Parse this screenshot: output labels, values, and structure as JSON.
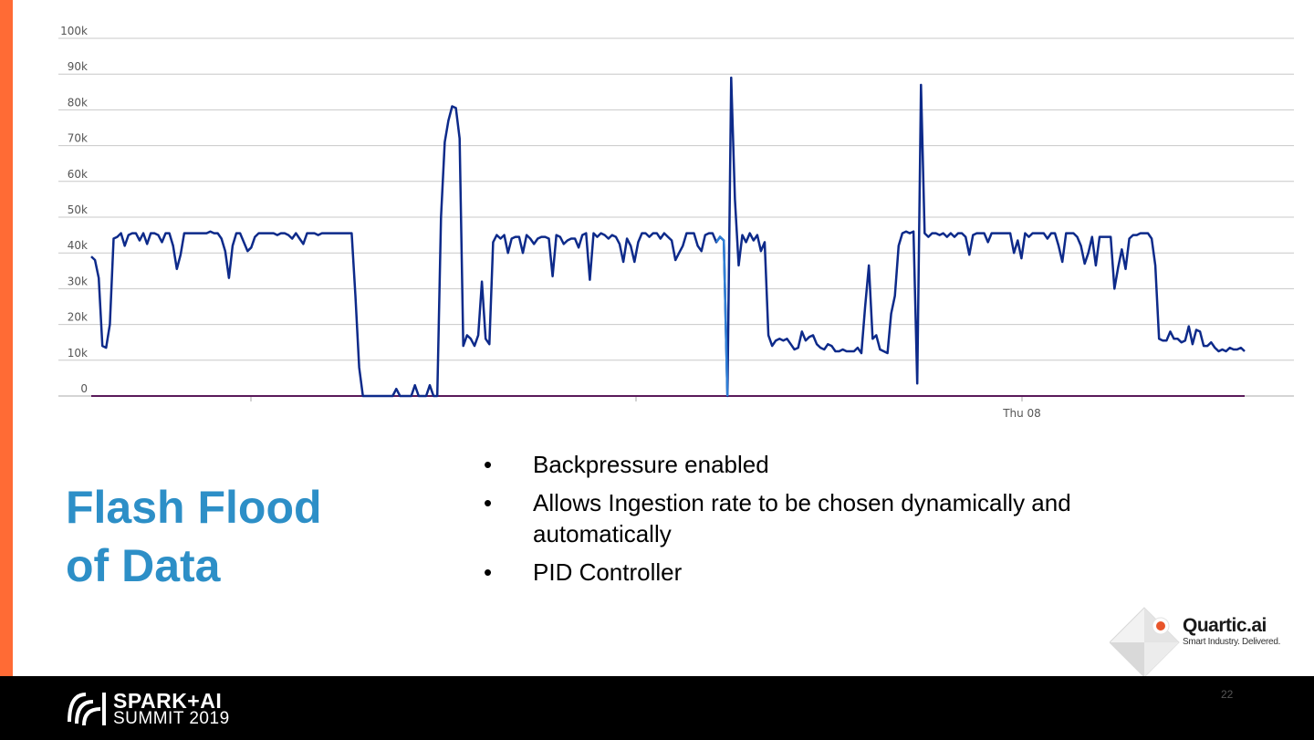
{
  "slide": {
    "title_line1": "Flash Flood",
    "title_line2": "of Data",
    "bullets": [
      "Backpressure enabled",
      "Allows Ingestion rate to be chosen dynamically and automatically",
      "PID Controller"
    ],
    "page_number": "22"
  },
  "logo": {
    "name": "Quartic.ai",
    "tagline": "Smart Industry. Delivered."
  },
  "footer": {
    "brand_line1": "SPARK+AI",
    "brand_line2": "SUMMIT 2019"
  },
  "colors": {
    "accent": "#ff6b35",
    "title": "#2d8fc7",
    "series": "#0d2a8a",
    "highlight": "#2f7fd6",
    "baseline": "#5a1a5a"
  },
  "chart_data": {
    "type": "line",
    "title": "",
    "xlabel": "",
    "ylabel": "",
    "ylim": [
      0,
      100000
    ],
    "y_ticks": [
      0,
      10000,
      20000,
      30000,
      40000,
      50000,
      60000,
      70000,
      80000,
      90000,
      100000
    ],
    "y_tick_labels": [
      "0",
      "10k",
      "20k",
      "30k",
      "40k",
      "50k",
      "60k",
      "70k",
      "80k",
      "90k",
      "100k"
    ],
    "x_tick_labels": [
      "Thu 08"
    ],
    "grid": true,
    "legend": "none",
    "series": [
      {
        "values": [
          39000,
          38000,
          33000,
          14000,
          13500,
          20000,
          44000,
          44500,
          45500,
          42000,
          45000,
          45500,
          45500,
          43500,
          45500,
          42500,
          45500,
          45500,
          45000,
          43000,
          45500,
          45500,
          42000,
          35500,
          39500,
          45500,
          45500,
          45500,
          45500,
          45500,
          45500,
          45500,
          46000,
          45500,
          45500,
          44000,
          40500,
          33000,
          42000,
          45500,
          45500,
          43000,
          40500,
          41500,
          44500,
          45500,
          45500,
          45500,
          45500,
          45500,
          45000,
          45500,
          45500,
          45000,
          44000,
          45500,
          44000,
          42500,
          45500,
          45500,
          45500,
          45000,
          45500,
          45500,
          45500,
          45500,
          45500,
          45500,
          45500,
          45500,
          45500,
          28000,
          8000,
          0,
          0,
          0,
          0,
          0,
          0,
          0,
          0,
          0,
          2000,
          0,
          0,
          0,
          0,
          3000,
          0,
          0,
          0,
          3000,
          0,
          0,
          50000,
          71000,
          77000,
          81000,
          80500,
          72000,
          14000,
          17000,
          16000,
          14000,
          17000,
          32000,
          16000,
          14500,
          43000,
          45000,
          44000,
          45000,
          40000,
          44000,
          44500,
          44500,
          40000,
          45000,
          44000,
          42500,
          44000,
          44500,
          44500,
          44000,
          33500,
          45000,
          44500,
          42500,
          43500,
          44000,
          44000,
          41500,
          45000,
          45500,
          32500,
          45500,
          44500,
          45500,
          45000,
          44000,
          45000,
          44500,
          42500,
          37500,
          44000,
          42000,
          37500,
          43000,
          45500,
          45500,
          44500,
          45500,
          45500,
          44000,
          45500,
          44500,
          43500,
          38000,
          40000,
          42000,
          45500,
          45500,
          45500,
          42000,
          40500,
          45000,
          45500,
          45500,
          43000,
          44500,
          43500,
          0,
          89000,
          55000,
          36500,
          45000,
          43000,
          45500,
          43500,
          45000,
          40500,
          43000,
          17000,
          14000,
          15500,
          16000,
          15500,
          16000,
          14500,
          13000,
          13500,
          18000,
          15500,
          16500,
          17000,
          14500,
          13500,
          13000,
          14500,
          14000,
          12500,
          12500,
          13000,
          12500,
          12500,
          12500,
          13500,
          12000,
          25000,
          36500,
          16000,
          17000,
          13000,
          12500,
          12000,
          23000,
          28000,
          42000,
          45500,
          46000,
          45500,
          46000,
          3500,
          87000,
          45500,
          44500,
          45500,
          45500,
          45000,
          45500,
          44500,
          45500,
          44500,
          45500,
          45500,
          44500,
          39500,
          45000,
          45500,
          45500,
          45500,
          43000,
          45500,
          45500,
          45500,
          45500,
          45500,
          45500,
          40000,
          43500,
          38500,
          45500,
          44500,
          45500,
          45500,
          45500,
          45500,
          44000,
          45500,
          45500,
          42000,
          37500,
          45500,
          45500,
          45500,
          44500,
          42000,
          37000,
          40000,
          44500,
          36500,
          44500,
          44500,
          44500,
          44500,
          30000,
          36000,
          41000,
          35500,
          44000,
          45000,
          45000,
          45500,
          45500,
          45500,
          44000,
          36500,
          16000,
          15500,
          15500,
          18000,
          16000,
          16000,
          15000,
          15500,
          19500,
          14500,
          18500,
          18000,
          14000,
          14000,
          15000,
          13500,
          12500,
          13000,
          12500,
          13500,
          13000,
          13000,
          13500,
          12500
        ],
        "highlight_range": [
          168,
          171
        ]
      },
      {
        "values": [
          0,
          0
        ]
      }
    ]
  }
}
